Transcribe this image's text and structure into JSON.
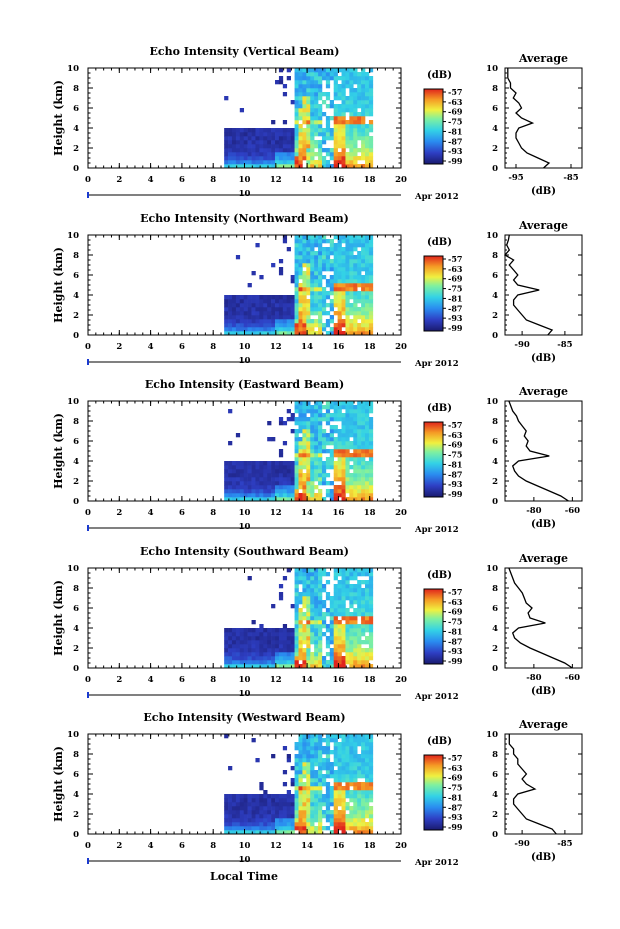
{
  "xlabel": "Local Time",
  "chart_data": [
    {
      "type": "heatmap",
      "title": "Echo Intensity (Vertical Beam)",
      "ylabel": "Height (km)",
      "x_ticks": [
        "0",
        "2",
        "4",
        "6",
        "8",
        "10",
        "12",
        "14",
        "16",
        "18",
        "20"
      ],
      "y_ticks": [
        "0",
        "2",
        "4",
        "6",
        "8",
        "10"
      ],
      "xlim": [
        0,
        20
      ],
      "ylim": [
        0,
        10
      ],
      "date_marker": "10",
      "date_label": "Apr 2012",
      "colorbar_label": "(dB)",
      "colorbar_ticks": [
        "-57",
        "-63",
        "-69",
        "-75",
        "-81",
        "-87",
        "-93",
        "-99"
      ],
      "data_start_time": 8.7,
      "data_end_time": 18.0,
      "avg_title": "Average",
      "avg_xlabel": "(dB)",
      "avg_xticks": [
        "-95",
        "-85"
      ],
      "avg_xlim": [
        -97,
        -83
      ],
      "avg_height": [
        0,
        0.5,
        1,
        1.5,
        2,
        2.5,
        3,
        3.5,
        4,
        4.5,
        5,
        5.5,
        6,
        6.5,
        7,
        7.5,
        8,
        8.5,
        9,
        9.5,
        10
      ],
      "avg_values": [
        -90,
        -89,
        -91,
        -93,
        -94,
        -94.5,
        -95,
        -95,
        -94.5,
        -92,
        -94,
        -95,
        -94,
        -94.5,
        -95.5,
        -95,
        -96,
        -96,
        -96.5,
        -96.5,
        -96.5
      ]
    },
    {
      "type": "heatmap",
      "title": "Echo Intensity (Northward Beam)",
      "ylabel": "Height (km)",
      "x_ticks": [
        "0",
        "2",
        "4",
        "6",
        "8",
        "10",
        "12",
        "14",
        "16",
        "18",
        "20"
      ],
      "y_ticks": [
        "0",
        "2",
        "4",
        "6",
        "8",
        "10"
      ],
      "xlim": [
        0,
        20
      ],
      "ylim": [
        0,
        10
      ],
      "date_marker": "10",
      "date_label": "Apr 2012",
      "colorbar_label": "(dB)",
      "colorbar_ticks": [
        "-57",
        "-63",
        "-69",
        "-75",
        "-81",
        "-87",
        "-93",
        "-99"
      ],
      "data_start_time": 8.7,
      "data_end_time": 18.0,
      "avg_title": "Average",
      "avg_xlabel": "(dB)",
      "avg_xticks": [
        "-90",
        "-85"
      ],
      "avg_xlim": [
        -92,
        -83
      ],
      "avg_height": [
        0,
        0.5,
        1,
        1.5,
        2,
        2.5,
        3,
        3.5,
        4,
        4.5,
        5,
        5.5,
        6,
        6.5,
        7,
        7.5,
        8,
        8.5,
        9,
        9.5,
        10
      ],
      "avg_values": [
        -87,
        -86.5,
        -88,
        -89.5,
        -90,
        -90.5,
        -91,
        -91,
        -90.5,
        -88,
        -90.5,
        -91,
        -90.5,
        -91,
        -91.5,
        -91,
        -92,
        -91.5,
        -91.8,
        -91.6,
        -91.5
      ]
    },
    {
      "type": "heatmap",
      "title": "Echo Intensity (Eastward Beam)",
      "ylabel": "Height (km)",
      "x_ticks": [
        "0",
        "2",
        "4",
        "6",
        "8",
        "10",
        "12",
        "14",
        "16",
        "18",
        "20"
      ],
      "y_ticks": [
        "0",
        "2",
        "4",
        "6",
        "8",
        "10"
      ],
      "xlim": [
        0,
        20
      ],
      "ylim": [
        0,
        10
      ],
      "date_marker": "10",
      "date_label": "Apr 2012",
      "colorbar_label": "(dB)",
      "colorbar_ticks": [
        "-57",
        "-63",
        "-69",
        "-75",
        "-81",
        "-87",
        "-93",
        "-99"
      ],
      "data_start_time": 8.7,
      "data_end_time": 18.0,
      "avg_title": "Average",
      "avg_xlabel": "(dB)",
      "avg_xticks": [
        "-80",
        "-60"
      ],
      "avg_xlim": [
        -95,
        -55
      ],
      "avg_height": [
        0,
        0.5,
        1,
        1.5,
        2,
        2.5,
        3,
        3.5,
        4,
        4.5,
        5,
        5.5,
        6,
        6.5,
        7,
        7.5,
        8,
        8.5,
        9,
        9.5,
        10
      ],
      "avg_values": [
        -62,
        -66,
        -72,
        -78,
        -84,
        -88,
        -90,
        -91,
        -88,
        -72,
        -82,
        -84,
        -83,
        -85,
        -84,
        -86,
        -88,
        -89,
        -91,
        -92,
        -93
      ]
    },
    {
      "type": "heatmap",
      "title": "Echo Intensity (Southward Beam)",
      "ylabel": "Height (km)",
      "x_ticks": [
        "0",
        "2",
        "4",
        "6",
        "8",
        "10",
        "12",
        "14",
        "16",
        "18",
        "20"
      ],
      "y_ticks": [
        "0",
        "2",
        "4",
        "6",
        "8",
        "10"
      ],
      "xlim": [
        0,
        20
      ],
      "ylim": [
        0,
        10
      ],
      "date_marker": "10",
      "date_label": "Apr 2012",
      "colorbar_label": "(dB)",
      "colorbar_ticks": [
        "-57",
        "-63",
        "-69",
        "-75",
        "-81",
        "-87",
        "-93",
        "-99"
      ],
      "data_start_time": 8.7,
      "data_end_time": 18.0,
      "avg_title": "Average",
      "avg_xlabel": "(dB)",
      "avg_xticks": [
        "-80",
        "-60"
      ],
      "avg_xlim": [
        -95,
        -55
      ],
      "avg_height": [
        0,
        0.5,
        1,
        1.5,
        2,
        2.5,
        3,
        3.5,
        4,
        4.5,
        5,
        5.5,
        6,
        6.5,
        7,
        7.5,
        8,
        8.5,
        9,
        9.5,
        10
      ],
      "avg_values": [
        -60,
        -64,
        -70,
        -76,
        -82,
        -87,
        -90,
        -91,
        -88,
        -74,
        -82,
        -83,
        -81,
        -84,
        -85,
        -86,
        -88,
        -90,
        -91,
        -92,
        -93
      ]
    },
    {
      "type": "heatmap",
      "title": "Echo Intensity (Westward Beam)",
      "ylabel": "Height (km)",
      "x_ticks": [
        "0",
        "2",
        "4",
        "6",
        "8",
        "10",
        "12",
        "14",
        "16",
        "18",
        "20"
      ],
      "y_ticks": [
        "0",
        "2",
        "4",
        "6",
        "8",
        "10"
      ],
      "xlim": [
        0,
        20
      ],
      "ylim": [
        0,
        10
      ],
      "date_marker": "10",
      "date_label": "Apr 2012",
      "colorbar_label": "(dB)",
      "colorbar_ticks": [
        "-57",
        "-63",
        "-69",
        "-75",
        "-81",
        "-87",
        "-93",
        "-99"
      ],
      "data_start_time": 8.7,
      "data_end_time": 18.0,
      "avg_title": "Average",
      "avg_xlabel": "(dB)",
      "avg_xticks": [
        "-90",
        "-85"
      ],
      "avg_xlim": [
        -92,
        -83
      ],
      "avg_height": [
        0,
        0.5,
        1,
        1.5,
        2,
        2.5,
        3,
        3.5,
        4,
        4.5,
        5,
        5.5,
        6,
        6.5,
        7,
        7.5,
        8,
        8.5,
        9,
        9.5,
        10
      ],
      "avg_values": [
        -86,
        -86.5,
        -88,
        -89.5,
        -90,
        -90.5,
        -91,
        -91,
        -90.5,
        -88.5,
        -89.5,
        -90,
        -89.5,
        -90,
        -90.5,
        -90.5,
        -91,
        -91,
        -91.5,
        -91.5,
        -91.5
      ]
    }
  ]
}
